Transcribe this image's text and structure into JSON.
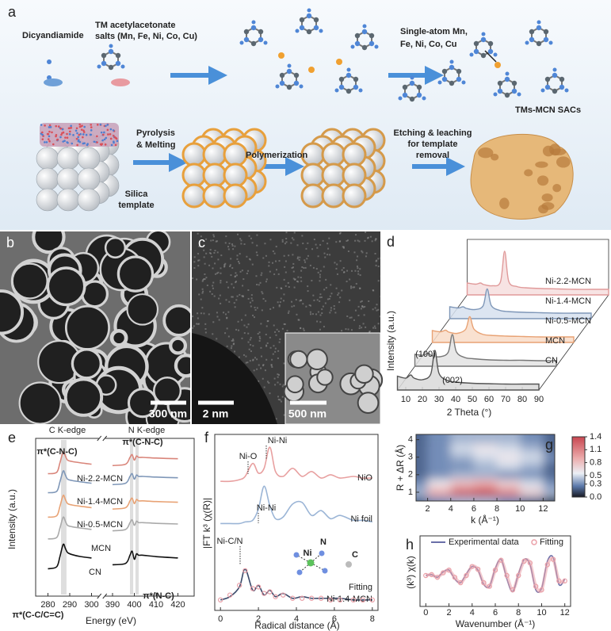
{
  "figure_a": {
    "panel": "a",
    "precursor_1": "Dicyandiamide",
    "precursor_2": [
      "TM acetylacetonate",
      "salts (Mn, Fe, Ni, Co, Cu)"
    ],
    "single_atom": [
      "Single-atom Mn,",
      "Fe, Ni, Co, Cu"
    ],
    "product": "TMs-MCN SACs",
    "step_1": [
      "Pyrolysis",
      "& Melting"
    ],
    "step_2": "Polymerization",
    "step_3": [
      "Etching & leaching",
      "for template",
      "removal"
    ],
    "template": [
      "Silica",
      "template"
    ]
  },
  "figure_b": {
    "panel": "b",
    "scale_bar": "300 nm"
  },
  "figure_c": {
    "panel": "c",
    "scale_bar": "2 nm",
    "inset_scale_bar": "500 nm"
  },
  "chart_data": [
    {
      "type": "line",
      "panel": "d",
      "waterfall": true,
      "xlabel": "2 Theta (°)",
      "ylabel": "Intensity (a.u.)",
      "x": [
        5,
        10,
        13,
        15,
        20,
        25,
        27.5,
        30,
        35,
        40,
        50,
        60,
        70,
        80,
        90
      ],
      "xlim": [
        5,
        90
      ],
      "xticks": [
        10,
        20,
        30,
        40,
        50,
        60,
        70,
        80,
        90
      ],
      "ylim": [
        0,
        1.2
      ],
      "series": [
        {
          "name": "CN",
          "color": "#555555",
          "fill": "#d9d9d9",
          "values": [
            0.35,
            0.3,
            0.38,
            0.3,
            0.26,
            0.4,
            1.0,
            0.42,
            0.24,
            0.2,
            0.17,
            0.16,
            0.15,
            0.15,
            0.15
          ]
        },
        {
          "name": "MCN",
          "color": "#777777",
          "fill": "#e3e3e3",
          "values": [
            0.3,
            0.28,
            0.33,
            0.27,
            0.24,
            0.35,
            0.8,
            0.36,
            0.22,
            0.19,
            0.16,
            0.15,
            0.15,
            0.14,
            0.14
          ]
        },
        {
          "name": "Ni-0.5-MCN",
          "color": "#e8a274",
          "fill": "#f8dcc8",
          "values": [
            0.3,
            0.27,
            0.31,
            0.26,
            0.23,
            0.33,
            0.65,
            0.34,
            0.21,
            0.18,
            0.16,
            0.15,
            0.14,
            0.14,
            0.14
          ]
        },
        {
          "name": "Ni-1.4-MCN",
          "color": "#7f97b8",
          "fill": "#d6e0ee",
          "values": [
            0.3,
            0.27,
            0.3,
            0.26,
            0.23,
            0.32,
            0.75,
            0.33,
            0.21,
            0.18,
            0.16,
            0.15,
            0.14,
            0.14,
            0.14
          ]
        },
        {
          "name": "Ni-2.2-MCN",
          "color": "#e09a9a",
          "fill": "#f6dede",
          "values": [
            0.3,
            0.27,
            0.3,
            0.26,
            0.23,
            0.33,
            1.1,
            0.34,
            0.21,
            0.18,
            0.16,
            0.15,
            0.14,
            0.14,
            0.14
          ]
        }
      ],
      "annotations": [
        "(100)",
        "(002)"
      ]
    },
    {
      "type": "line",
      "panel": "e",
      "xlabel": "Energy (eV)",
      "ylabel": "Intensity (a.u.)",
      "x": [
        280,
        284,
        285.5,
        287,
        288,
        289,
        291,
        295,
        300,
        390,
        396,
        398,
        399,
        400,
        401,
        402,
        404,
        410,
        420
      ],
      "xlim": [
        278,
        422
      ],
      "xbreak": [
        303,
        387
      ],
      "xticks": [
        280,
        290,
        300,
        390,
        400,
        410,
        420
      ],
      "ylim": [
        0,
        10.5
      ],
      "bands": [
        [
          286,
          288.5
        ],
        [
          398,
          399.5
        ],
        [
          400.5,
          402
        ]
      ],
      "series": [
        {
          "name": "Ni-2.2-MCN",
          "color": "#d9857a",
          "values": [
            8.6,
            8.7,
            9.4,
            10.2,
            9.9,
            9.6,
            9.5,
            9.4,
            9.3,
            9.2,
            9.3,
            9.8,
            10.0,
            9.6,
            9.9,
            9.8,
            9.8,
            9.75,
            9.7
          ]
        },
        {
          "name": "Ni-1.4-MCN",
          "color": "#7f97b8",
          "values": [
            7.2,
            7.3,
            8.0,
            8.8,
            8.5,
            8.2,
            8.1,
            8.0,
            7.9,
            7.8,
            7.9,
            8.4,
            8.6,
            8.2,
            8.5,
            8.4,
            8.4,
            8.35,
            8.3
          ]
        },
        {
          "name": "Ni-0.5-MCN",
          "color": "#e8a274",
          "values": [
            5.4,
            5.5,
            6.2,
            7.0,
            6.7,
            6.4,
            6.3,
            6.2,
            6.1,
            6.0,
            6.1,
            6.6,
            6.8,
            6.4,
            6.7,
            6.6,
            6.6,
            6.55,
            6.5
          ]
        },
        {
          "name": "MCN",
          "color": "#aaaaaa",
          "values": [
            3.8,
            3.9,
            4.6,
            5.4,
            5.1,
            4.8,
            4.7,
            4.6,
            4.5,
            4.4,
            4.5,
            5.0,
            5.2,
            4.8,
            5.1,
            5.0,
            5.0,
            4.95,
            4.9
          ]
        },
        {
          "name": "CN",
          "color": "#111111",
          "values": [
            1.6,
            1.75,
            2.5,
            3.4,
            3.1,
            2.8,
            2.65,
            2.5,
            2.4,
            1.9,
            2.0,
            2.6,
            2.9,
            2.3,
            2.7,
            2.6,
            2.6,
            2.5,
            2.4
          ]
        }
      ],
      "annotations": [
        "C K-edge",
        "N K-edge",
        "π*(C-N-C)",
        "π*(C-N-C)",
        "π*(C-C/C=C)",
        "π*(N-C)"
      ]
    },
    {
      "type": "line",
      "panel": "f",
      "xlabel": "Radical distance (Å)",
      "ylabel": "|FT k³ (χ(R)|",
      "x": [
        0,
        0.5,
        1,
        1.3,
        1.7,
        2,
        2.3,
        2.6,
        2.9,
        3.3,
        3.8,
        4.3,
        4.8,
        5.3,
        5.8,
        6.3,
        7,
        7.5,
        8
      ],
      "xlim": [
        -0.3,
        8.3
      ],
      "xticks": [
        0,
        2,
        4,
        6,
        8
      ],
      "ylim": [
        0,
        10
      ],
      "series": [
        {
          "name": "NiO",
          "color": "#e8a0a0",
          "style": "line",
          "values": [
            7.7,
            7.7,
            7.8,
            8.0,
            8.8,
            8.2,
            8.5,
            9.8,
            8.3,
            8.0,
            8.5,
            8.0,
            8.3,
            7.9,
            8.1,
            7.9,
            8.0,
            7.9,
            7.9
          ]
        },
        {
          "name": "Ni foil",
          "color": "#9bb5d6",
          "style": "line",
          "values": [
            5.1,
            5.1,
            5.1,
            5.2,
            5.3,
            6.0,
            7.4,
            6.2,
            5.4,
            5.5,
            6.3,
            6.4,
            5.6,
            5.9,
            5.4,
            5.6,
            5.3,
            5.3,
            5.2
          ]
        },
        {
          "name": "Ni-1.4-MCN",
          "color": "#3a4a6a",
          "style": "line",
          "values": [
            0.4,
            0.6,
            1.2,
            2.3,
            1.0,
            1.3,
            0.7,
            1.0,
            0.6,
            0.8,
            0.5,
            0.6,
            0.5,
            0.5,
            0.5,
            0.5,
            0.4,
            0.4,
            0.4
          ]
        },
        {
          "name": "Fitting",
          "color": "#eaa0a8",
          "style": "markers",
          "values": [
            0.4,
            0.7,
            1.3,
            2.2,
            1.1,
            1.2,
            0.8,
            0.9,
            0.6,
            0.7,
            0.5,
            0.5,
            0.5,
            0.5,
            0.4,
            0.4,
            0.4,
            0.4,
            0.4
          ]
        }
      ],
      "annotations": [
        "Ni-O",
        "Ni-Ni",
        "Ni-Ni",
        "Ni-C/N"
      ],
      "inset_labels": [
        "Ni",
        "N",
        "C"
      ]
    },
    {
      "type": "contour",
      "panel": "g",
      "xlabel": "k (Å⁻¹)",
      "ylabel": "R + ΔR (Å)",
      "x": [
        1,
        3,
        5,
        7,
        9,
        11,
        13
      ],
      "y": [
        0.5,
        1,
        1.5,
        2,
        2.5,
        3,
        3.5,
        4
      ],
      "z": [
        [
          0.2,
          0.3,
          0.4,
          0.4,
          0.3,
          0.2,
          0.1
        ],
        [
          0.4,
          0.9,
          1.3,
          1.4,
          1.1,
          0.7,
          0.4
        ],
        [
          0.3,
          0.6,
          0.8,
          0.9,
          0.7,
          0.5,
          0.3
        ],
        [
          0.2,
          0.3,
          0.4,
          0.4,
          0.3,
          0.3,
          0.2
        ],
        [
          0.2,
          0.3,
          0.3,
          0.4,
          0.5,
          0.4,
          0.2
        ],
        [
          0.2,
          0.3,
          0.4,
          0.5,
          0.6,
          0.5,
          0.3
        ],
        [
          0.2,
          0.3,
          0.5,
          0.6,
          0.5,
          0.4,
          0.2
        ],
        [
          0.2,
          0.3,
          0.4,
          0.4,
          0.4,
          0.3,
          0.2
        ]
      ],
      "xlim": [
        1,
        13
      ],
      "xticks": [
        2,
        4,
        6,
        8,
        10,
        12
      ],
      "ylim": [
        0.5,
        4.3
      ],
      "yticks": [
        1,
        2,
        3,
        4
      ],
      "zlim": [
        0,
        1.4
      ],
      "zticks": [
        {
          "value": 0,
          "label": "0.0"
        },
        0.3,
        0.5,
        0.8,
        1.1,
        1.4
      ]
    },
    {
      "type": "line",
      "panel": "h",
      "xlabel": "Wavenumber (Å⁻¹)",
      "ylabel": "(k³) χ(k)",
      "x": [
        0,
        0.5,
        1,
        1.5,
        2,
        2.5,
        3,
        3.5,
        4,
        4.5,
        5,
        5.5,
        6,
        6.5,
        7,
        7.5,
        8,
        8.5,
        9,
        9.5,
        10,
        10.5,
        11,
        11.5,
        12
      ],
      "xlim": [
        -0.5,
        12.5
      ],
      "xticks": [
        0,
        2,
        4,
        6,
        8,
        10,
        12
      ],
      "ylim": [
        -1.5,
        1.5
      ],
      "series": [
        {
          "name": "Experimental data",
          "color": "#6a6fa8",
          "style": "line",
          "values": [
            0,
            0.05,
            -0.1,
            0.2,
            0.3,
            -0.2,
            -0.4,
            0.1,
            0.5,
            0.3,
            -0.5,
            -0.6,
            0.4,
            0.9,
            -0.2,
            -0.9,
            0.1,
            0.9,
            0.6,
            -0.8,
            -0.7,
            0.8,
            1.0,
            -0.5,
            -0.2
          ]
        },
        {
          "name": "Fitting",
          "color": "#eaa0a8",
          "style": "line-markers",
          "values": [
            0,
            0.05,
            -0.1,
            0.15,
            0.3,
            -0.1,
            -0.4,
            0,
            0.5,
            0.35,
            -0.4,
            -0.6,
            0.3,
            0.85,
            0,
            -0.8,
            0,
            0.8,
            0.7,
            -0.6,
            -0.8,
            0.6,
            0.9,
            -0.3,
            -0.3
          ]
        }
      ]
    }
  ]
}
